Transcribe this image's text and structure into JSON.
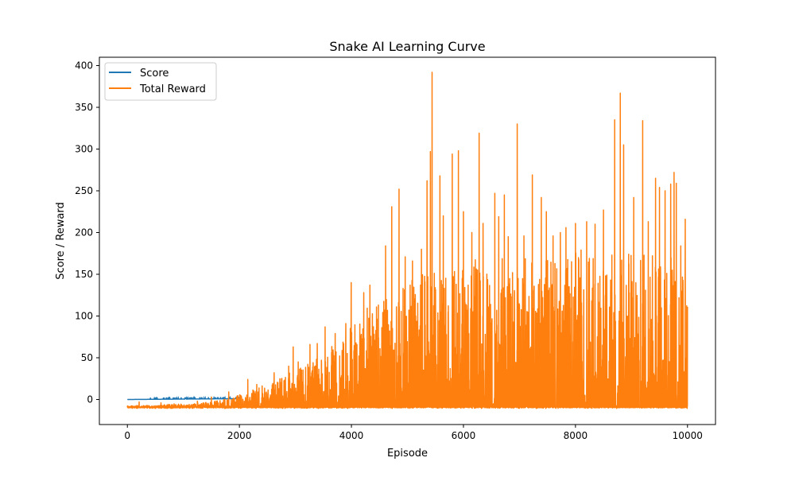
{
  "chart_data": {
    "type": "line",
    "title": "Snake AI Learning Curve",
    "xlabel": "Episode",
    "ylabel": "Score / Reward",
    "xlim": [
      -500,
      10500
    ],
    "ylim": [
      -30,
      410
    ],
    "xticks": [
      0,
      2000,
      4000,
      6000,
      8000,
      10000
    ],
    "yticks": [
      0,
      50,
      100,
      150,
      200,
      250,
      300,
      350,
      400
    ],
    "grid": false,
    "legend_position": "upper-left",
    "episodes": 10000,
    "series": [
      {
        "name": "Score",
        "color": "#1f77b4",
        "values": [
          [
            0,
            0
          ],
          [
            2000,
            1
          ]
        ]
      },
      {
        "name": "Total Reward",
        "color": "#ff7f0e",
        "baseline": -10,
        "envelope": [
          [
            0,
            -8
          ],
          [
            500,
            -7
          ],
          [
            1000,
            -5
          ],
          [
            1500,
            -3
          ],
          [
            2000,
            5
          ],
          [
            2500,
            18
          ],
          [
            3000,
            35
          ],
          [
            3500,
            55
          ],
          [
            4000,
            95
          ],
          [
            4500,
            120
          ],
          [
            5000,
            140
          ],
          [
            5500,
            160
          ],
          [
            6000,
            165
          ],
          [
            6500,
            170
          ],
          [
            7000,
            170
          ],
          [
            7500,
            170
          ],
          [
            8000,
            175
          ],
          [
            8500,
            175
          ],
          [
            9000,
            180
          ],
          [
            9500,
            180
          ],
          [
            10000,
            175
          ]
        ],
        "peaks": [
          [
            210,
            -3
          ],
          [
            600,
            -4
          ],
          [
            1250,
            -2
          ],
          [
            1500,
            3
          ],
          [
            1810,
            9
          ],
          [
            2150,
            24
          ],
          [
            2310,
            18
          ],
          [
            2620,
            32
          ],
          [
            2880,
            40
          ],
          [
            2960,
            63
          ],
          [
            3050,
            45
          ],
          [
            3260,
            66
          ],
          [
            3390,
            67
          ],
          [
            3530,
            87
          ],
          [
            3710,
            79
          ],
          [
            3900,
            91
          ],
          [
            3995,
            140
          ],
          [
            4220,
            128
          ],
          [
            4330,
            137
          ],
          [
            4610,
            184
          ],
          [
            4720,
            231
          ],
          [
            4850,
            252
          ],
          [
            4960,
            171
          ],
          [
            5090,
            166
          ],
          [
            5250,
            180
          ],
          [
            5350,
            262
          ],
          [
            5410,
            297
          ],
          [
            5440,
            392
          ],
          [
            5580,
            268
          ],
          [
            5640,
            220
          ],
          [
            5800,
            294
          ],
          [
            5910,
            298
          ],
          [
            6000,
            225
          ],
          [
            6150,
            200
          ],
          [
            6280,
            319
          ],
          [
            6350,
            211
          ],
          [
            6560,
            247
          ],
          [
            6630,
            219
          ],
          [
            6730,
            245
          ],
          [
            6800,
            195
          ],
          [
            6960,
            330
          ],
          [
            7080,
            196
          ],
          [
            7230,
            269
          ],
          [
            7390,
            242
          ],
          [
            7480,
            225
          ],
          [
            7600,
            196
          ],
          [
            7730,
            200
          ],
          [
            7830,
            206
          ],
          [
            7930,
            165
          ],
          [
            8000,
            211
          ],
          [
            8100,
            179
          ],
          [
            8200,
            213
          ],
          [
            8350,
            210
          ],
          [
            8500,
            227
          ],
          [
            8700,
            335
          ],
          [
            8800,
            367
          ],
          [
            8860,
            305
          ],
          [
            8950,
            174
          ],
          [
            9040,
            242
          ],
          [
            9200,
            334
          ],
          [
            9300,
            213
          ],
          [
            9430,
            265
          ],
          [
            9500,
            254
          ],
          [
            9600,
            250
          ],
          [
            9700,
            258
          ],
          [
            9760,
            272
          ],
          [
            9800,
            259
          ],
          [
            9880,
            184
          ],
          [
            9960,
            216
          ],
          [
            10000,
            111
          ]
        ]
      }
    ]
  }
}
